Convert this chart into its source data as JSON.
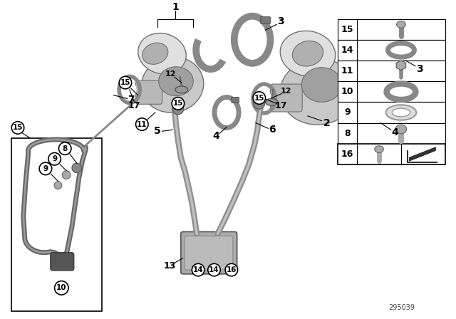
{
  "background_color": "#ffffff",
  "part_number": "295039",
  "fig_width": 6.4,
  "fig_height": 4.48,
  "dpi": 100,
  "gray_dark": "#707070",
  "gray_mid": "#a0a0a0",
  "gray_light": "#c8c8c8",
  "gray_lighter": "#e0e0e0",
  "black": "#000000",
  "white": "#ffffff"
}
